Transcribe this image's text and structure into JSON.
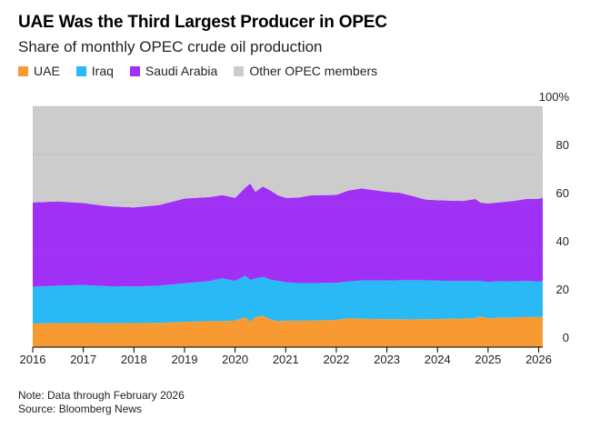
{
  "header": {
    "title": "UAE Was the Third Largest Producer in OPEC",
    "subtitle": "Share of monthly OPEC crude oil production"
  },
  "legend": {
    "items": [
      {
        "label": "UAE",
        "color": "#f79a32"
      },
      {
        "label": "Iraq",
        "color": "#29b9f5"
      },
      {
        "label": "Saudi Arabia",
        "color": "#a030f5"
      },
      {
        "label": "Other OPEC members",
        "color": "#cccccc"
      }
    ]
  },
  "footer": {
    "note": "Note: Data through February 2026",
    "source": "Source: Bloomberg News"
  },
  "chart_data": {
    "type": "area",
    "stacked": true,
    "title": "UAE Was the Third Largest Producer in OPEC",
    "subtitle": "Share of monthly OPEC crude oil production",
    "ylim": [
      0,
      100
    ],
    "xlim": [
      2016,
      2026.08
    ],
    "y_ticks": [
      0,
      20,
      40,
      60,
      80,
      100
    ],
    "y_tick_labels": [
      "0",
      "20",
      "40",
      "60",
      "80",
      "100%"
    ],
    "x_ticks": [
      2016,
      2017,
      2018,
      2019,
      2020,
      2021,
      2022,
      2023,
      2024,
      2025,
      2026
    ],
    "x_tick_labels": [
      "2016",
      "2017",
      "2018",
      "2019",
      "2020",
      "2021",
      "2022",
      "2023",
      "2024",
      "2025",
      "2026"
    ],
    "grid": true,
    "x": [
      2016.0,
      2016.5,
      2017.0,
      2017.5,
      2018.0,
      2018.5,
      2019.0,
      2019.5,
      2019.75,
      2020.0,
      2020.2,
      2020.3,
      2020.4,
      2020.55,
      2020.7,
      2020.85,
      2021.0,
      2021.25,
      2021.5,
      2022.0,
      2022.25,
      2022.5,
      2023.0,
      2023.25,
      2023.5,
      2023.75,
      2024.0,
      2024.5,
      2024.75,
      2024.85,
      2025.0,
      2025.25,
      2025.5,
      2025.75,
      2026.0,
      2026.08
    ],
    "series": [
      {
        "name": "UAE",
        "color": "#f79a32",
        "values": [
          9.8,
          10.0,
          10.0,
          9.9,
          10.0,
          10.1,
          10.5,
          10.8,
          10.8,
          11.0,
          12.5,
          10.5,
          12.5,
          13.0,
          11.5,
          10.8,
          11.0,
          11.0,
          11.0,
          11.3,
          12.0,
          11.8,
          11.6,
          11.6,
          11.5,
          11.6,
          11.7,
          11.9,
          12.0,
          12.8,
          12.0,
          12.2,
          12.3,
          12.5,
          12.6,
          12.5
        ]
      },
      {
        "name": "Iraq",
        "color": "#29b9f5",
        "values": [
          15.3,
          15.5,
          15.8,
          15.4,
          15.2,
          15.4,
          16.0,
          16.7,
          17.8,
          16.5,
          17.2,
          17.4,
          16.0,
          16.2,
          16.5,
          16.7,
          16.0,
          15.6,
          15.6,
          15.4,
          15.3,
          15.9,
          16.1,
          16.2,
          16.3,
          16.2,
          15.9,
          15.6,
          15.5,
          14.7,
          15.1,
          15.2,
          15.0,
          15.0,
          14.7,
          14.9
        ]
      },
      {
        "name": "Saudi Arabia",
        "color": "#a030f5",
        "values": [
          35.0,
          35.0,
          34.0,
          33.2,
          32.8,
          33.5,
          35.2,
          34.8,
          34.5,
          34.5,
          36.5,
          40.0,
          36.0,
          37.5,
          37.0,
          35.5,
          35.0,
          35.5,
          36.4,
          36.5,
          37.8,
          38.2,
          36.8,
          36.3,
          35.0,
          33.5,
          33.4,
          33.2,
          34.0,
          32.5,
          32.5,
          32.8,
          33.4,
          34.0,
          34.3,
          34.6
        ]
      },
      {
        "name": "Other OPEC members",
        "color": "#cccccc",
        "values": [
          39.9,
          39.5,
          40.2,
          41.5,
          42.0,
          41.0,
          38.3,
          37.7,
          36.9,
          38.0,
          33.8,
          32.1,
          35.5,
          33.3,
          35.0,
          37.0,
          38.0,
          37.9,
          37.0,
          36.8,
          34.9,
          34.1,
          35.5,
          35.9,
          37.2,
          38.7,
          39.0,
          39.3,
          38.5,
          40.0,
          40.4,
          39.8,
          39.3,
          38.5,
          38.4,
          38.0
        ]
      }
    ]
  }
}
